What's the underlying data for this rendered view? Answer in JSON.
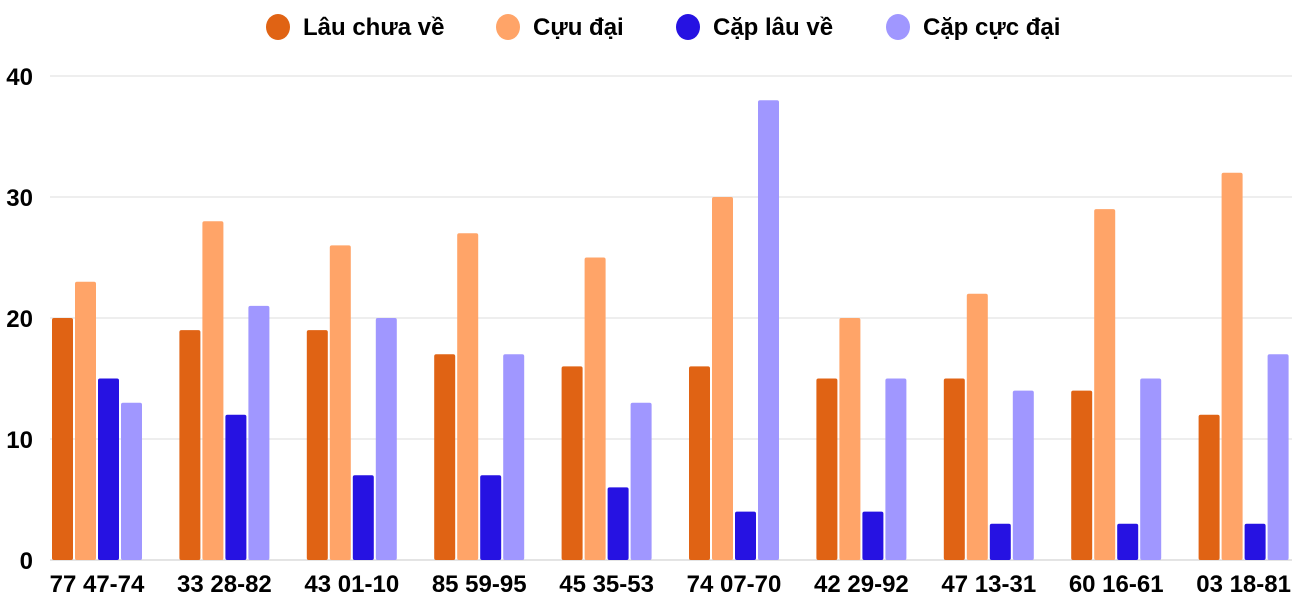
{
  "chart_data": {
    "type": "bar",
    "title": "",
    "xlabel": "",
    "ylabel": "",
    "ylim": [
      0,
      40
    ],
    "yticks": [
      0,
      10,
      20,
      30,
      40
    ],
    "grid": true,
    "legend_position": "top",
    "categories": [
      "77 47-74",
      "33 28-82",
      "43 01-10",
      "85 59-95",
      "45 35-53",
      "74 07-70",
      "42 29-92",
      "47 13-31",
      "60 16-61",
      "03 18-81"
    ],
    "series": [
      {
        "name": "Lâu chưa về",
        "color": "#e06314",
        "values": [
          20,
          19,
          19,
          17,
          16,
          16,
          15,
          15,
          14,
          12
        ]
      },
      {
        "name": "Cựu đại",
        "color": "#ffa468",
        "values": [
          23,
          28,
          26,
          27,
          25,
          30,
          20,
          22,
          29,
          32
        ]
      },
      {
        "name": "Cặp lâu về",
        "color": "#2612e2",
        "values": [
          15,
          12,
          7,
          7,
          6,
          4,
          4,
          3,
          3,
          3
        ]
      },
      {
        "name": "Cặp cực đại",
        "color": "#a097ff",
        "values": [
          13,
          21,
          20,
          17,
          13,
          38,
          15,
          14,
          15,
          17
        ]
      }
    ]
  }
}
